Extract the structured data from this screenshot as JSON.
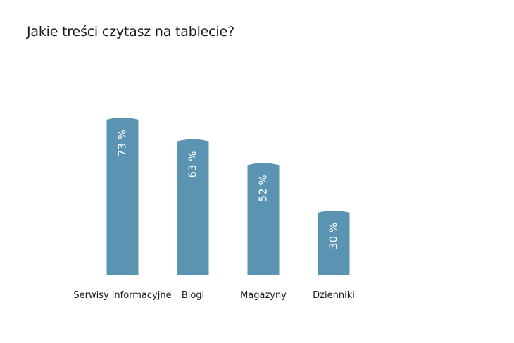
{
  "title": "Jakie treści czytasz na tablecie?",
  "colors": {
    "bar": "#5b94b2",
    "bar_label": "#ffffff",
    "text": "#1b1b1b"
  },
  "chart_data": {
    "type": "bar",
    "title": "Jakie treści czytasz na tablecie?",
    "categories": [
      "Serwisy informacyjne",
      "Blogi",
      "Magazyny",
      "Dzienniki"
    ],
    "values": [
      73,
      63,
      52,
      30
    ],
    "value_labels": [
      "73 %",
      "63 %",
      "52 %",
      "30 %"
    ],
    "unit": "%",
    "xlabel": "",
    "ylabel": "",
    "grid": false,
    "legend": "none",
    "value_label_orientation": "vertical"
  }
}
